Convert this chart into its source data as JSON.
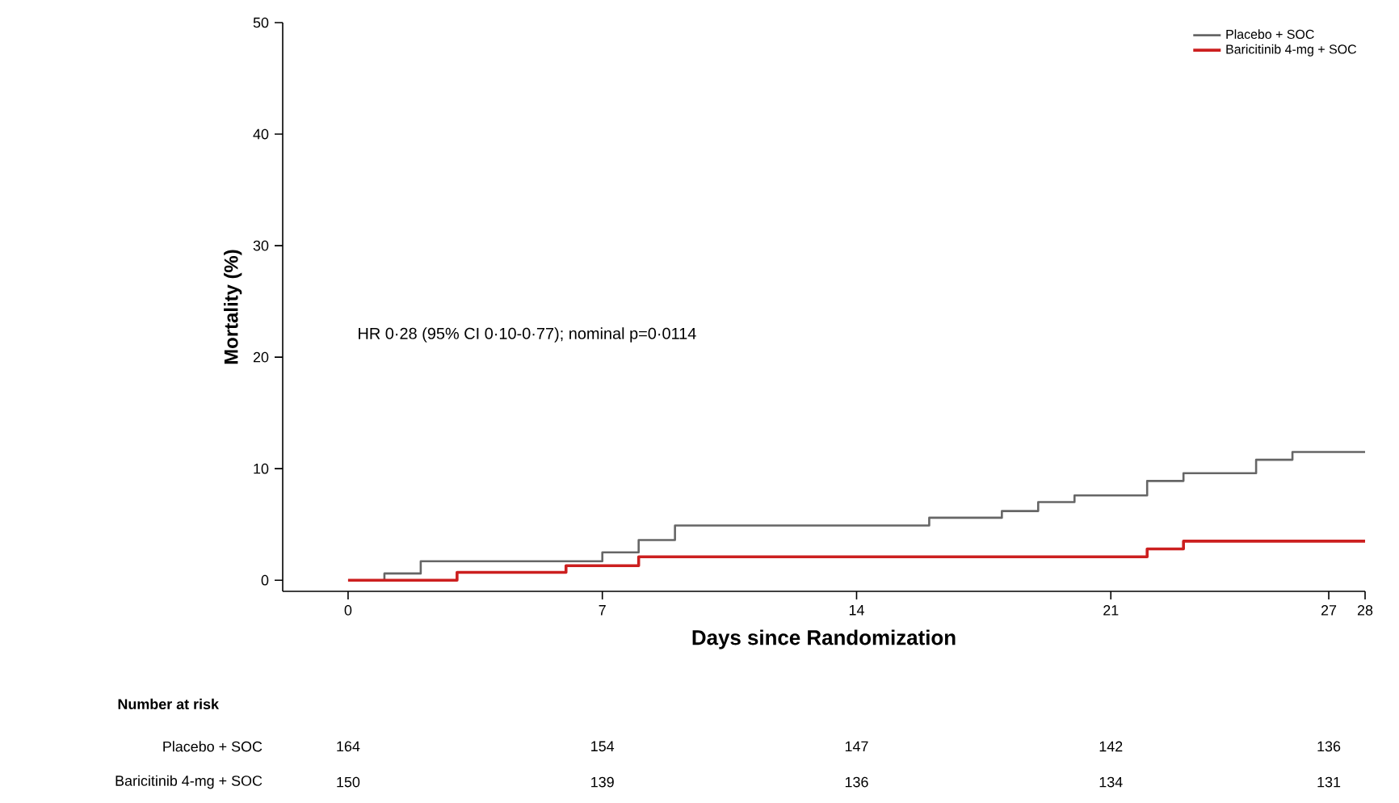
{
  "chart_data": {
    "type": "step",
    "xlabel": "Days since Randomization",
    "ylabel": "Mortality (%)",
    "xlim": [
      -1.8,
      28
    ],
    "ylim": [
      -1,
      50
    ],
    "xticks": [
      0,
      7,
      14,
      21,
      27,
      28
    ],
    "yticks": [
      0,
      10,
      20,
      30,
      40,
      50
    ],
    "grid": false,
    "legend": "top right",
    "series": [
      {
        "name": "Placebo + SOC",
        "color": "#666666",
        "x": [
          0,
          1,
          2,
          7,
          8,
          9,
          16,
          18,
          19,
          20,
          22,
          23,
          25,
          26,
          28
        ],
        "values": [
          0,
          0.6,
          1.7,
          2.5,
          3.6,
          4.9,
          5.6,
          6.2,
          7.0,
          7.6,
          8.9,
          9.6,
          10.8,
          11.5,
          11.5
        ]
      },
      {
        "name": "Baricitinib 4-mg + SOC",
        "color": "#cc1f1f",
        "x": [
          0,
          3,
          6,
          8,
          22,
          23,
          28
        ],
        "values": [
          0,
          0.7,
          1.3,
          2.1,
          2.8,
          3.5,
          3.5
        ]
      }
    ],
    "annotations": [
      "HR 0·28 (95% CI 0·10-0·77); nominal p=0·0114",
      "Number at risk",
      "Placebo + SOC",
      "164",
      "154",
      "147",
      "142",
      "136",
      "Baricitinib 4-mg + SOC",
      "150",
      "139",
      "136",
      "134",
      "131"
    ]
  }
}
